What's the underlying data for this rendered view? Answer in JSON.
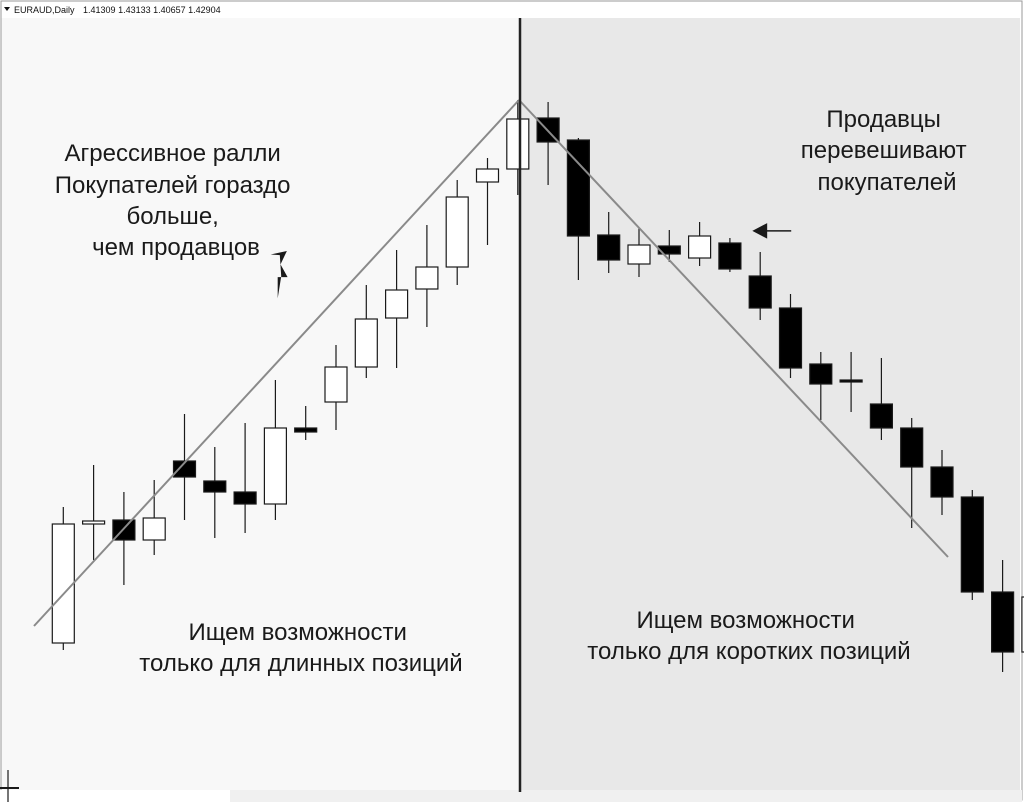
{
  "header": {
    "symbol": "EURAUD,Daily",
    "ohlc": "1.41309 1.43133 1.40657 1.42904"
  },
  "annotations": {
    "left_top": [
      "Агрессивное ралли",
      "Покупателей гораздо",
      "больше,",
      "чем продавцов"
    ],
    "right_top": [
      "Продавцы",
      "перевешивают",
      "покупателей"
    ],
    "left_bottom": [
      "Ищем возможности",
      "только для длинных позиций"
    ],
    "right_bottom": [
      "Ищем возможности",
      "только для коротких позиций"
    ]
  },
  "colors": {
    "left_background": "#f8f8f8",
    "right_background": "#e8e8e8",
    "bull_body": "#ffffff",
    "bear_body": "#000000",
    "trendline": "#8a8a8a",
    "divider": "#222222"
  },
  "chart_data": {
    "type": "candlestick",
    "ylim": [
      -1000,
      0
    ],
    "candles": [
      {
        "o": -787,
        "h": -770,
        "l": -805,
        "c": -787,
        "dir": "bull"
      },
      {
        "o": -643,
        "h": -507,
        "l": -650,
        "c": -524,
        "dir": "bull"
      },
      {
        "o": -524,
        "h": -465,
        "l": -560,
        "c": -521,
        "dir": "bull"
      },
      {
        "o": -520,
        "h": -492,
        "l": -585,
        "c": -540,
        "dir": "bear"
      },
      {
        "o": -540,
        "h": -480,
        "l": -555,
        "c": -518,
        "dir": "bull"
      },
      {
        "o": -461,
        "h": -414,
        "l": -520,
        "c": -477,
        "dir": "bear"
      },
      {
        "o": -481,
        "h": -447,
        "l": -538,
        "c": -492,
        "dir": "bear"
      },
      {
        "o": -492,
        "h": -423,
        "l": -533,
        "c": -504,
        "dir": "bear"
      },
      {
        "o": -504,
        "h": -380,
        "l": -520,
        "c": -428,
        "dir": "bull"
      },
      {
        "o": -428,
        "h": -406,
        "l": -440,
        "c": -432,
        "dir": "bear"
      },
      {
        "o": -402,
        "h": -345,
        "l": -430,
        "c": -367,
        "dir": "bull"
      },
      {
        "o": -367,
        "h": -285,
        "l": -378,
        "c": -319,
        "dir": "bull"
      },
      {
        "o": -318,
        "h": -250,
        "l": -368,
        "c": -290,
        "dir": "bull"
      },
      {
        "o": -289,
        "h": -225,
        "l": -327,
        "c": -267,
        "dir": "bull"
      },
      {
        "o": -267,
        "h": -180,
        "l": -285,
        "c": -197,
        "dir": "bull"
      },
      {
        "o": -182,
        "h": -158,
        "l": -245,
        "c": -169,
        "dir": "bull"
      },
      {
        "o": -169,
        "h": -100,
        "l": -195,
        "c": -119,
        "dir": "bull"
      },
      {
        "o": -118,
        "h": -102,
        "l": -185,
        "c": -142,
        "dir": "bear"
      },
      {
        "o": -140,
        "h": -138,
        "l": -280,
        "c": -236,
        "dir": "bear"
      },
      {
        "o": -235,
        "h": -212,
        "l": -273,
        "c": -260,
        "dir": "bear"
      },
      {
        "o": -264,
        "h": -228,
        "l": -277,
        "c": -245,
        "dir": "bull"
      },
      {
        "o": -246,
        "h": -230,
        "l": -262,
        "c": -254,
        "dir": "bear"
      },
      {
        "o": -258,
        "h": -222,
        "l": -266,
        "c": -236,
        "dir": "bull"
      },
      {
        "o": -243,
        "h": -238,
        "l": -272,
        "c": -269,
        "dir": "bear"
      },
      {
        "o": -276,
        "h": -252,
        "l": -320,
        "c": -308,
        "dir": "bear"
      },
      {
        "o": -308,
        "h": -294,
        "l": -378,
        "c": -368,
        "dir": "bear"
      },
      {
        "o": -364,
        "h": -352,
        "l": -420,
        "c": -384,
        "dir": "bear"
      },
      {
        "o": -380,
        "h": -352,
        "l": -412,
        "c": -382,
        "dir": "bear"
      },
      {
        "o": -404,
        "h": -358,
        "l": -440,
        "c": -428,
        "dir": "bear"
      },
      {
        "o": -428,
        "h": -418,
        "l": -528,
        "c": -467,
        "dir": "bear"
      },
      {
        "o": -467,
        "h": -450,
        "l": -515,
        "c": -497,
        "dir": "bear"
      },
      {
        "o": -497,
        "h": -490,
        "l": -600,
        "c": -592,
        "dir": "bear"
      },
      {
        "o": -592,
        "h": -560,
        "l": -672,
        "c": -652,
        "dir": "bear"
      },
      {
        "o": -652,
        "h": -578,
        "l": -692,
        "c": -597,
        "dir": "bull"
      }
    ],
    "trendlines": [
      {
        "from": [
          -626,
          "left"
        ],
        "to": [
          -100,
          "apex"
        ]
      },
      {
        "from": [
          -100,
          "apex"
        ],
        "to": [
          -557,
          "right"
        ]
      }
    ],
    "grid": false
  }
}
